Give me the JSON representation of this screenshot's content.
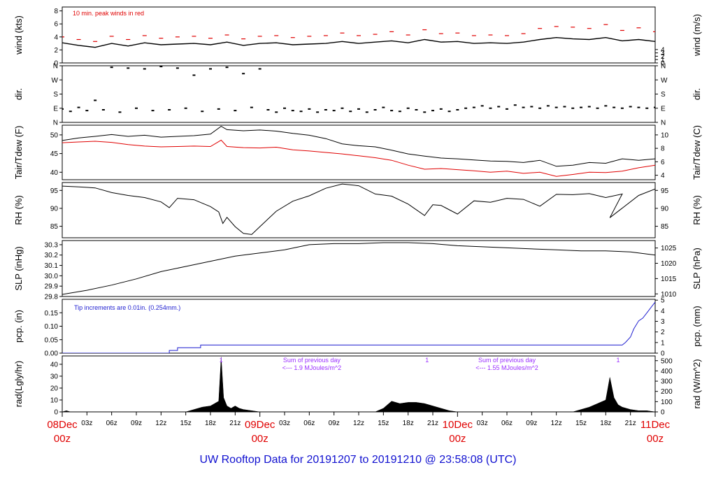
{
  "title": "UW Rooftop Data for 20191207  to  20191210 @ 23:58:08  (UTC)",
  "colors": {
    "frame": "#000000",
    "data": "#000000",
    "dewpoint": "#e00000",
    "peak": "#e00000",
    "precip": "#1f1fd0",
    "annot": "#9b30ff",
    "day_label": "#e00000",
    "title": "#1010d0"
  },
  "x_axis": {
    "range_hours": [
      0,
      72
    ],
    "tick_hours": [
      3,
      6,
      9,
      12,
      15,
      18,
      21,
      27,
      30,
      33,
      36,
      39,
      42,
      45,
      51,
      54,
      57,
      60,
      63,
      66,
      69
    ],
    "tick_labels": [
      "03z",
      "06z",
      "09z",
      "12z",
      "15z",
      "18z",
      "21z",
      "03z",
      "06z",
      "09z",
      "12z",
      "15z",
      "18z",
      "21z",
      "03z",
      "06z",
      "09z",
      "12z",
      "15z",
      "18z",
      "21z"
    ],
    "day_ticks": [
      {
        "hour": 0,
        "date": "08Dec",
        "time": "00z"
      },
      {
        "hour": 24,
        "date": "09Dec",
        "time": "00z"
      },
      {
        "hour": 48,
        "date": "10Dec",
        "time": "00z"
      },
      {
        "hour": 72,
        "date": "11Dec",
        "time": "00z"
      }
    ]
  },
  "chart_data": [
    {
      "id": "wind",
      "type": "line",
      "ylabel": "wind (kts)",
      "ylabel_right": "wind (m/s)",
      "ylim": [
        0,
        8.6
      ],
      "yticks": [
        0,
        2,
        4,
        6,
        8
      ],
      "yticks_right": [
        0,
        1,
        2,
        3,
        4
      ],
      "right_factor": 1.9438,
      "annotation": "10 min. peak winds in red",
      "series": [
        {
          "x": [
            0,
            2,
            4,
            6,
            8,
            10,
            12,
            14,
            16,
            18,
            20,
            22,
            24,
            26,
            28,
            30,
            32,
            34,
            36,
            38,
            40,
            42,
            44,
            46,
            48,
            50,
            52,
            54,
            56,
            58,
            60,
            62,
            64,
            66,
            68,
            70,
            72
          ],
          "y": [
            3.1,
            2.7,
            2.4,
            3.0,
            2.6,
            3.1,
            2.8,
            2.9,
            3.0,
            2.8,
            3.2,
            2.7,
            3.0,
            3.1,
            2.8,
            2.9,
            3.0,
            3.3,
            3.0,
            3.2,
            3.4,
            3.1,
            3.6,
            3.2,
            3.3,
            3.0,
            3.1,
            3.0,
            3.2,
            3.6,
            3.9,
            3.7,
            3.6,
            3.9,
            3.4,
            3.6,
            3.3
          ]
        },
        {
          "name": "10 min. peak",
          "style": "dashes",
          "x": [
            0,
            2,
            4,
            6,
            8,
            10,
            12,
            14,
            16,
            18,
            20,
            22,
            24,
            26,
            28,
            30,
            32,
            34,
            36,
            38,
            40,
            42,
            44,
            46,
            48,
            50,
            52,
            54,
            56,
            58,
            60,
            62,
            64,
            66,
            68,
            70,
            72
          ],
          "y": [
            4.0,
            3.6,
            3.3,
            4.1,
            3.6,
            4.2,
            3.8,
            4.0,
            4.1,
            3.8,
            4.3,
            3.7,
            4.1,
            4.2,
            3.9,
            4.1,
            4.2,
            4.6,
            4.2,
            4.4,
            4.8,
            4.3,
            5.1,
            4.5,
            4.6,
            4.2,
            4.3,
            4.2,
            4.5,
            5.3,
            5.6,
            5.5,
            5.3,
            5.9,
            5.0,
            5.4,
            4.8
          ]
        }
      ]
    },
    {
      "id": "dir",
      "type": "scatter",
      "ylabel": "dir.",
      "ylabel_right": "dir.",
      "ylim": [
        0,
        360
      ],
      "yticks": [
        0,
        90,
        180,
        270,
        360
      ],
      "ytick_labels": [
        "N",
        "E",
        "S",
        "W",
        "N"
      ],
      "series": [
        {
          "x": [
            0,
            1,
            2,
            3,
            4,
            5,
            6,
            7,
            8,
            9,
            10,
            11,
            12,
            13,
            14,
            15,
            16,
            17,
            18,
            19,
            20,
            21,
            22,
            23,
            24,
            25,
            26,
            27,
            28,
            29,
            30,
            31,
            32,
            33,
            34,
            35,
            36,
            37,
            38,
            39,
            40,
            41,
            42,
            43,
            44,
            45,
            46,
            47,
            48,
            49,
            50,
            51,
            52,
            53,
            54,
            55,
            56,
            57,
            58,
            59,
            60,
            61,
            62,
            63,
            64,
            65,
            66,
            67,
            68,
            69,
            70,
            71,
            72
          ],
          "y": [
            85,
            70,
            95,
            75,
            140,
            80,
            350,
            65,
            345,
            90,
            340,
            75,
            355,
            80,
            345,
            90,
            300,
            70,
            340,
            85,
            350,
            75,
            310,
            95,
            340,
            80,
            65,
            90,
            75,
            70,
            85,
            65,
            80,
            75,
            90,
            70,
            85,
            65,
            80,
            95,
            75,
            70,
            90,
            80,
            65,
            75,
            85,
            70,
            80,
            90,
            95,
            105,
            90,
            100,
            85,
            110,
            95,
            100,
            90,
            105,
            95,
            100,
            90,
            95,
            100,
            90,
            105,
            95,
            90,
            100,
            95,
            90,
            95
          ]
        }
      ]
    },
    {
      "id": "temp",
      "type": "line",
      "ylabel": "Tair/Tdew (F)",
      "ylabel_right": "Tair/Tdew (C)",
      "ylim": [
        38,
        52.6
      ],
      "yticks": [
        40,
        45,
        50
      ],
      "yticks_right": [
        4,
        6,
        8,
        10
      ],
      "right_convert": "F_to_C",
      "series": [
        {
          "name": "Tair",
          "x": [
            0,
            2,
            4,
            6,
            8,
            10,
            12,
            14,
            16,
            18,
            19.3,
            20,
            22,
            24,
            26,
            28,
            30,
            32,
            34,
            36,
            38,
            40,
            42,
            44,
            46,
            48,
            50,
            52,
            54,
            56,
            58,
            60,
            62,
            64,
            66,
            68,
            70,
            72
          ],
          "y": [
            48.5,
            49.2,
            49.6,
            50.1,
            49.6,
            49.9,
            49.4,
            49.6,
            49.8,
            50.2,
            52.3,
            51.4,
            51.1,
            51.3,
            51.0,
            50.4,
            49.9,
            49.0,
            47.6,
            47.1,
            46.8,
            45.9,
            44.9,
            44.3,
            43.8,
            43.6,
            43.3,
            43.0,
            42.9,
            42.6,
            43.2,
            41.6,
            41.9,
            42.6,
            42.4,
            43.6,
            43.2,
            43.6
          ]
        },
        {
          "name": "Tdew",
          "x": [
            0,
            2,
            4,
            6,
            8,
            10,
            12,
            14,
            16,
            18,
            19.3,
            20,
            22,
            24,
            26,
            28,
            30,
            32,
            34,
            36,
            38,
            40,
            42,
            44,
            46,
            48,
            50,
            52,
            54,
            56,
            58,
            60,
            62,
            64,
            66,
            68,
            70,
            72
          ],
          "y": [
            47.9,
            48.1,
            48.3,
            48.0,
            47.4,
            47.0,
            46.8,
            46.9,
            47.0,
            46.9,
            48.6,
            46.9,
            46.6,
            46.5,
            46.7,
            46.0,
            45.7,
            45.3,
            44.9,
            44.4,
            43.9,
            43.2,
            41.9,
            40.8,
            41.0,
            40.7,
            40.4,
            40.0,
            40.3,
            39.7,
            40.0,
            38.9,
            39.4,
            40.0,
            39.9,
            40.3,
            41.2,
            41.9
          ]
        }
      ]
    },
    {
      "id": "rh",
      "type": "line",
      "ylabel": "RH (%)",
      "ylabel_right": "RH (%)",
      "ylim": [
        81.8,
        97.2
      ],
      "yticks": [
        85,
        90,
        95
      ],
      "yticks_right": [
        85,
        90,
        95
      ],
      "series": [
        {
          "x": [
            0,
            2,
            4,
            6,
            8,
            10,
            12,
            13,
            14,
            16,
            18,
            19,
            19.5,
            20,
            21,
            22,
            23,
            24,
            26,
            28,
            30,
            32,
            34,
            36,
            38,
            40,
            42,
            44,
            45,
            46,
            48,
            50,
            52,
            54,
            56,
            58,
            60,
            62,
            64,
            66,
            68,
            66.5,
            70,
            72
          ],
          "y": [
            96.2,
            96.0,
            95.7,
            94.4,
            93.6,
            93.0,
            91.8,
            90.2,
            92.8,
            92.4,
            90.5,
            89.0,
            85.8,
            87.5,
            84.9,
            83.0,
            82.7,
            84.9,
            89.2,
            92.0,
            93.5,
            95.6,
            96.8,
            96.3,
            94.0,
            93.4,
            91.2,
            88.0,
            91.0,
            90.8,
            88.4,
            92.1,
            91.7,
            92.8,
            92.5,
            90.6,
            93.9,
            93.8,
            94.1,
            93.0,
            94.0,
            87.4,
            93.6,
            95.4
          ]
        }
      ]
    },
    {
      "id": "slp",
      "type": "line",
      "ylabel": "SLP (inHg)",
      "ylabel_right": "SLP (hPa)",
      "ylim": [
        29.8,
        30.34
      ],
      "yticks": [
        29.8,
        29.9,
        30.0,
        30.1,
        30.2,
        30.3
      ],
      "ytick_labels": [
        "29.8",
        "29.9",
        "30.0",
        "30.1",
        "30.2",
        "30.3"
      ],
      "yticks_right": [
        1010,
        1015,
        1020,
        1025
      ],
      "right_factor": 33.8639,
      "series": [
        {
          "x": [
            0,
            3,
            6,
            9,
            12,
            15,
            18,
            21,
            24,
            27,
            30,
            33,
            36,
            39,
            42,
            45,
            48,
            51,
            54,
            57,
            60,
            63,
            66,
            69,
            72
          ],
          "y": [
            29.82,
            29.86,
            29.91,
            29.97,
            30.04,
            30.09,
            30.14,
            30.19,
            30.22,
            30.25,
            30.3,
            30.31,
            30.31,
            30.32,
            30.32,
            30.31,
            30.29,
            30.28,
            30.27,
            30.26,
            30.25,
            30.24,
            30.24,
            30.23,
            30.2
          ]
        }
      ]
    },
    {
      "id": "pcp",
      "type": "line",
      "ylabel": "pcp. (in)",
      "ylabel_right": "pcp. (mm)",
      "ylim": [
        0,
        0.2
      ],
      "yticks": [
        0,
        0.05,
        0.1,
        0.15
      ],
      "ytick_labels": [
        "0.00",
        "0.05",
        "0.10",
        "0.15"
      ],
      "yticks_right": [
        0,
        1,
        2,
        3,
        4,
        5
      ],
      "right_factor": 25.4,
      "annotation": "Tip increments are 0.01in. (0.254mm.)",
      "series": [
        {
          "x": [
            0,
            13.0,
            13.0,
            14.0,
            14.0,
            16.8,
            16.8,
            68.0,
            68.4,
            69.0,
            69.4,
            70.0,
            70.5,
            71.0,
            71.5,
            72
          ],
          "y": [
            0,
            0,
            0.01,
            0.01,
            0.02,
            0.02,
            0.03,
            0.03,
            0.04,
            0.06,
            0.09,
            0.12,
            0.13,
            0.15,
            0.17,
            0.19
          ]
        }
      ]
    },
    {
      "id": "rad",
      "type": "area",
      "ylabel": "rad(Lgly/hr)",
      "ylabel_right": "rad (W/m^2)",
      "ylim": [
        0,
        47
      ],
      "yticks": [
        0,
        10,
        20,
        30,
        40
      ],
      "yticks_right": [
        0,
        100,
        200,
        300,
        400,
        500
      ],
      "right_factor": 11.622,
      "annotations": [
        {
          "hour": 19.3,
          "text": "1"
        },
        {
          "hour": 30.3,
          "line1": "Sum of previous day",
          "line2": "<--- 1.9 MJoules/m^2"
        },
        {
          "hour": 44.3,
          "text": "1"
        },
        {
          "hour": 54.0,
          "line1": "Sum of previous day",
          "line2": "<--- 1.55 MJoules/m^2"
        },
        {
          "hour": 67.5,
          "text": "1"
        }
      ],
      "series": [
        {
          "x": [
            0,
            0.5,
            1,
            15,
            16,
            17,
            18,
            18.5,
            19,
            19.3,
            19.6,
            20,
            20.5,
            21,
            21.5,
            22,
            23,
            24,
            38,
            39,
            40,
            41,
            42,
            43,
            44,
            45,
            46,
            47,
            48,
            62,
            63,
            64,
            65,
            66,
            66.5,
            67,
            67.5,
            68,
            68.5,
            69,
            70,
            71,
            72
          ],
          "y": [
            0,
            1,
            0,
            0,
            2,
            4,
            5,
            7,
            9,
            46,
            12,
            5,
            3,
            5,
            3,
            2,
            1,
            0,
            0,
            3,
            9,
            7,
            8,
            8,
            7,
            5,
            3,
            1,
            0,
            0,
            2,
            4,
            7,
            10,
            29,
            12,
            6,
            4,
            3,
            2,
            1,
            1,
            0
          ]
        }
      ]
    }
  ]
}
